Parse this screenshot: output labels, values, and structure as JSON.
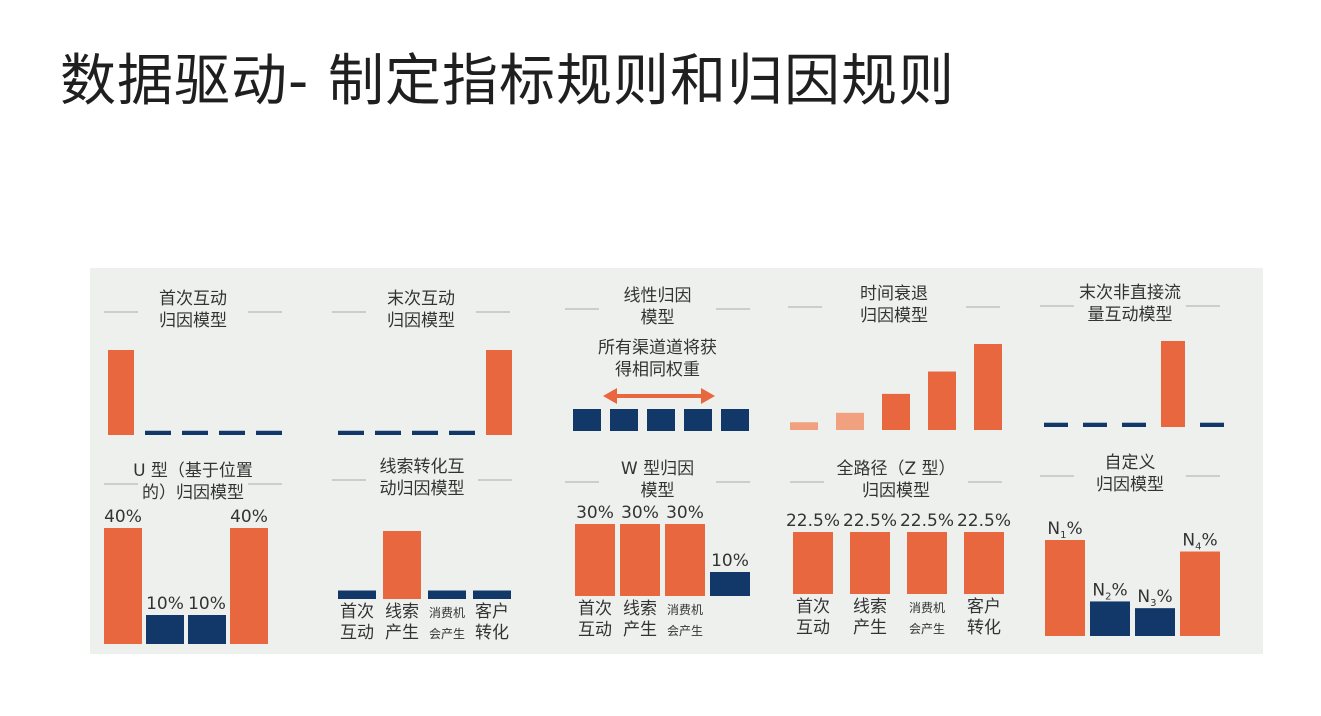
{
  "slide": {
    "title": "数据驱动- 制定指标规则和归因规则"
  },
  "colors": {
    "orange": "#e8673f",
    "orange_light": "#f1a080",
    "navy": "#12386a",
    "background": "#eef0ee",
    "title_line": "#aaaaaa"
  },
  "chart_data": [
    {
      "type": "bar",
      "title_lines": [
        "首次互动",
        "归因模型"
      ],
      "values": [
        100,
        5,
        5,
        5,
        5
      ],
      "colors": [
        "orange",
        "navy",
        "navy",
        "navy",
        "navy"
      ],
      "ylim": [
        0,
        100
      ]
    },
    {
      "type": "bar",
      "title_lines": [
        "末次互动",
        "归因模型"
      ],
      "values": [
        5,
        5,
        5,
        5,
        100
      ],
      "colors": [
        "navy",
        "navy",
        "navy",
        "navy",
        "orange"
      ],
      "ylim": [
        0,
        100
      ]
    },
    {
      "type": "bar",
      "title_lines": [
        "线性归因",
        "模型"
      ],
      "annotation_lines": [
        "所有渠道道将获",
        "得相同权重"
      ],
      "values": [
        20,
        20,
        20,
        20,
        20
      ],
      "colors": [
        "navy",
        "navy",
        "navy",
        "navy",
        "navy"
      ],
      "ylim": [
        0,
        100
      ]
    },
    {
      "type": "bar",
      "title_lines": [
        "时间衰退",
        "归因模型"
      ],
      "values": [
        9,
        20,
        42,
        68,
        100
      ],
      "colors": [
        "orange_light",
        "orange_light",
        "orange",
        "orange",
        "orange"
      ],
      "ylim": [
        0,
        100
      ]
    },
    {
      "type": "bar",
      "title_lines": [
        "末次非直接流",
        "量互动模型"
      ],
      "values": [
        5,
        5,
        5,
        100,
        5
      ],
      "colors": [
        "navy",
        "navy",
        "navy",
        "orange",
        "navy"
      ],
      "ylim": [
        0,
        100
      ]
    },
    {
      "type": "bar",
      "title_lines": [
        "U 型（基于位置",
        "的）归因模型"
      ],
      "values": [
        40,
        10,
        10,
        40
      ],
      "value_labels": [
        "40%",
        "10%",
        "10%",
        "40%"
      ],
      "colors": [
        "orange",
        "navy",
        "navy",
        "orange"
      ],
      "ylim": [
        0,
        40
      ]
    },
    {
      "type": "bar",
      "title_lines": [
        "线索转化互",
        "动归因模型"
      ],
      "values": [
        10,
        80,
        10,
        10
      ],
      "colors": [
        "navy",
        "orange",
        "navy",
        "navy"
      ],
      "categories": [
        [
          "首次",
          "互动"
        ],
        [
          "线索",
          "产生"
        ],
        [
          "消费机",
          "会产生"
        ],
        [
          "客户",
          "转化"
        ]
      ],
      "ylim": [
        0,
        100
      ]
    },
    {
      "type": "bar",
      "title_lines": [
        "W 型归因",
        "模型"
      ],
      "values": [
        30,
        30,
        30,
        10
      ],
      "value_labels": [
        "30%",
        "30%",
        "30%",
        "10%"
      ],
      "colors": [
        "orange",
        "orange",
        "orange",
        "navy"
      ],
      "categories": [
        [
          "首次",
          "互动"
        ],
        [
          "线索",
          "产生"
        ],
        [
          "消费机",
          "会产生"
        ],
        [
          "",
          ""
        ]
      ],
      "ylim": [
        0,
        30
      ]
    },
    {
      "type": "bar",
      "title_lines": [
        "全路径（Z 型）",
        "归因模型"
      ],
      "values": [
        22.5,
        22.5,
        22.5,
        22.5
      ],
      "value_labels": [
        "22.5%",
        "22.5%",
        "22.5%",
        "22.5%"
      ],
      "colors": [
        "orange",
        "orange",
        "orange",
        "orange"
      ],
      "categories": [
        [
          "首次",
          "互动"
        ],
        [
          "线索",
          "产生"
        ],
        [
          "消费机",
          "会产生"
        ],
        [
          "客户",
          "转化"
        ]
      ],
      "ylim": [
        0,
        22.5
      ]
    },
    {
      "type": "bar",
      "title_lines": [
        "自定义",
        "归因模型"
      ],
      "values": [
        100,
        36,
        29,
        88
      ],
      "value_labels": [
        {
          "main": "N",
          "sub": "1",
          "suffix": "%"
        },
        {
          "main": "N",
          "sub": "2",
          "suffix": "%"
        },
        {
          "main": "N",
          "sub": "3",
          "suffix": "%"
        },
        {
          "main": "N",
          "sub": "4",
          "suffix": "%"
        }
      ],
      "colors": [
        "orange",
        "navy",
        "navy",
        "orange"
      ],
      "ylim": [
        0,
        100
      ]
    }
  ]
}
